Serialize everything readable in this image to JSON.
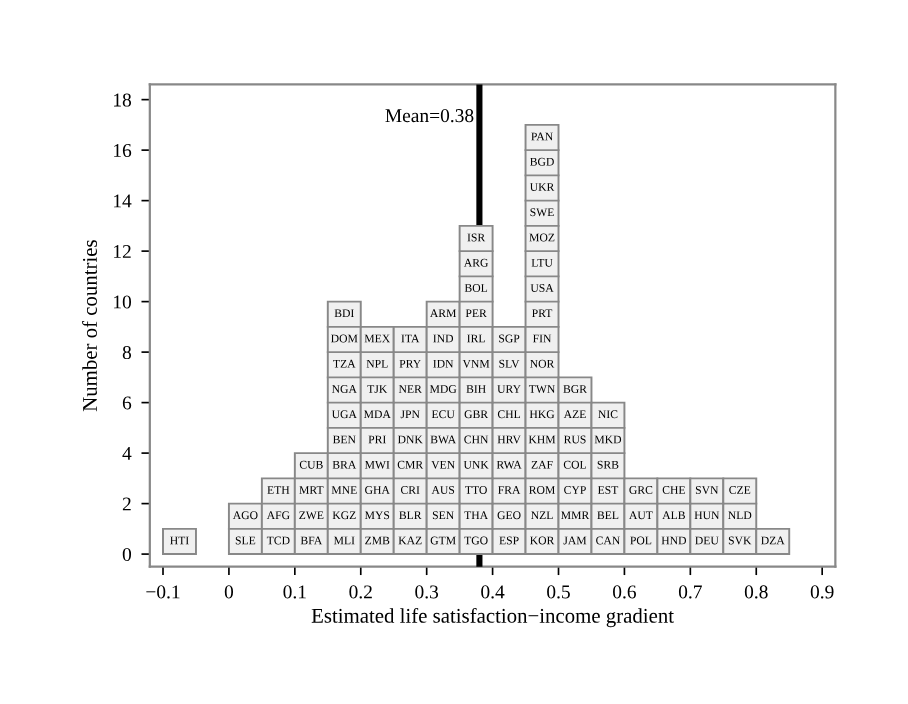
{
  "chart_data": {
    "type": "histogram",
    "xlabel": "Estimated life satisfaction−income gradient",
    "ylabel": "Number of countries",
    "bins": [
      -0.1,
      -0.05,
      0,
      0.05,
      0.1,
      0.15,
      0.2,
      0.25,
      0.3,
      0.35,
      0.4,
      0.45,
      0.5,
      0.55,
      0.6,
      0.65,
      0.7,
      0.75,
      0.8,
      0.85
    ],
    "values": [
      1,
      0,
      2,
      3,
      4,
      10,
      9,
      9,
      10,
      13,
      9,
      17,
      7,
      6,
      3,
      3,
      3,
      3,
      1
    ],
    "color": "#f0f0f0",
    "xlim": [
      -0.12,
      0.92
    ],
    "ylim": [
      -0.5,
      18.6
    ],
    "xticks": [
      {
        "value": -0.1,
        "label": "−0.1"
      },
      0,
      0.1,
      0.2,
      0.3,
      0.4,
      0.5,
      0.6,
      0.7,
      0.8,
      0.9
    ],
    "yticks": [
      0,
      2,
      4,
      6,
      8,
      10,
      12,
      14,
      16,
      18
    ],
    "grid": false,
    "ref_lines": [
      {
        "axis": "x",
        "value": 0.38,
        "label": "Mean=0.38",
        "color": "#000000"
      }
    ],
    "annotations": [
      "HTI",
      "SLE",
      "AGO",
      "TCD",
      "AFG",
      "ETH",
      "BFA",
      "ZWE",
      "MRT",
      "CUB",
      "MLI",
      "KGZ",
      "MNE",
      "BRA",
      "BEN",
      "UGA",
      "NGA",
      "TZA",
      "DOM",
      "BDI",
      "ZMB",
      "MYS",
      "GHA",
      "MWI",
      "PRI",
      "MDA",
      "TJK",
      "NPL",
      "MEX",
      "KAZ",
      "BLR",
      "CRI",
      "CMR",
      "DNK",
      "JPN",
      "NER",
      "PRY",
      "ITA",
      "GTM",
      "SEN",
      "AUS",
      "VEN",
      "BWA",
      "ECU",
      "MDG",
      "IDN",
      "IND",
      "ARM",
      "TGO",
      "THA",
      "TTO",
      "UNK",
      "CHN",
      "GBR",
      "BIH",
      "VNM",
      "IRL",
      "PER",
      "BOL",
      "ARG",
      "ISR",
      "ESP",
      "GEO",
      "FRA",
      "RWA",
      "HRV",
      "CHL",
      "URY",
      "SLV",
      "SGP",
      "KOR",
      "NZL",
      "ROM",
      "ZAF",
      "KHM",
      "HKG",
      "TWN",
      "NOR",
      "FIN",
      "PRT",
      "USA",
      "LTU",
      "MOZ",
      "SWE",
      "UKR",
      "BGD",
      "PAN",
      "JAM",
      "MMR",
      "CYP",
      "COL",
      "RUS",
      "AZE",
      "BGR",
      "CAN",
      "BEL",
      "EST",
      "SRB",
      "MKD",
      "NIC",
      "POL",
      "AUT",
      "GRC",
      "HND",
      "ALB",
      "CHE",
      "DEU",
      "HUN",
      "SVN",
      "SVK",
      "NLD",
      "CZE",
      "DZA"
    ]
  }
}
